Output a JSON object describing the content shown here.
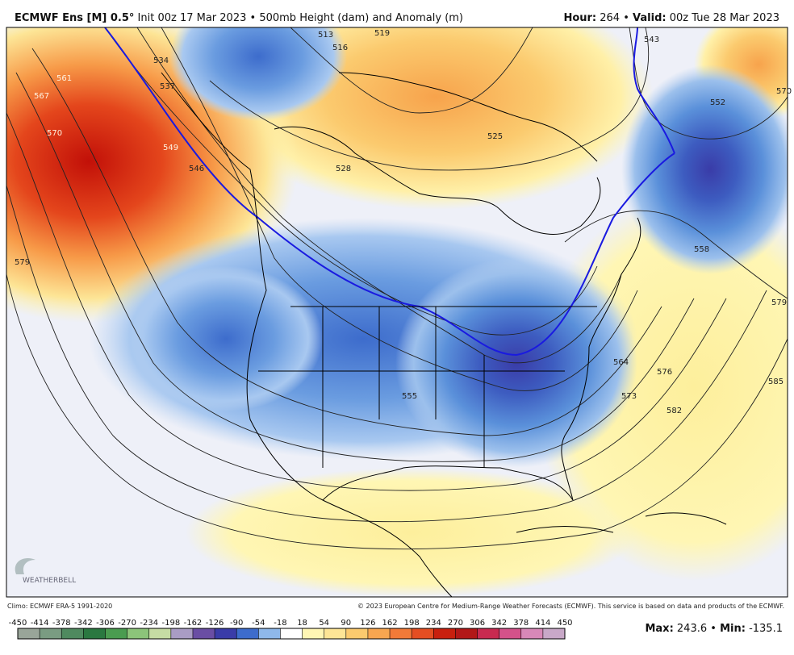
{
  "header": {
    "model": "ECMWF Ens [M] 0.5°",
    "init": "Init 00z 17 Mar 2023",
    "separator": "•",
    "product": "500mb Height (dam) and Anomaly (m)",
    "hour_label": "Hour:",
    "hour": "264",
    "valid_label": "Valid:",
    "valid": "00z Tue 28 Mar 2023"
  },
  "contour_labels": [
    534,
    537,
    561,
    567,
    570,
    549,
    546,
    579,
    513,
    516,
    519,
    528,
    525,
    543,
    552,
    570,
    558,
    579,
    564,
    576,
    585,
    573,
    582,
    555
  ],
  "logo": "WEATHERBELL",
  "footer": {
    "climo": "Climo: ECMWF ERA-5 1991-2020",
    "copyright": "© 2023 European Centre for Medium-Range Weather Forecasts (ECMWF). This service is based on data and products of the ECMWF."
  },
  "colorbar": {
    "ticks": [
      -450,
      -414,
      -378,
      -342,
      -306,
      -270,
      -234,
      -198,
      -162,
      -126,
      -90,
      -54,
      -18,
      18,
      54,
      90,
      126,
      162,
      198,
      234,
      270,
      306,
      342,
      378,
      414,
      450
    ],
    "colors": [
      "#99a599",
      "#7a9c82",
      "#4f8a5f",
      "#2a7840",
      "#4a9c50",
      "#8cc47a",
      "#c6dca4",
      "#a99cc4",
      "#6a4ea4",
      "#3a3ca8",
      "#3d6ccc",
      "#8fb8ea",
      "#ffffff",
      "#fff6b4",
      "#fde596",
      "#fbca6e",
      "#f8a650",
      "#f27a38",
      "#e44e22",
      "#c8200e",
      "#b21818",
      "#c82a50",
      "#d4528a",
      "#d888b8",
      "#c8a8c8"
    ]
  },
  "stats": {
    "max_label": "Max:",
    "max": 243.6,
    "separator": "•",
    "min_label": "Min:",
    "min": -135.1
  }
}
